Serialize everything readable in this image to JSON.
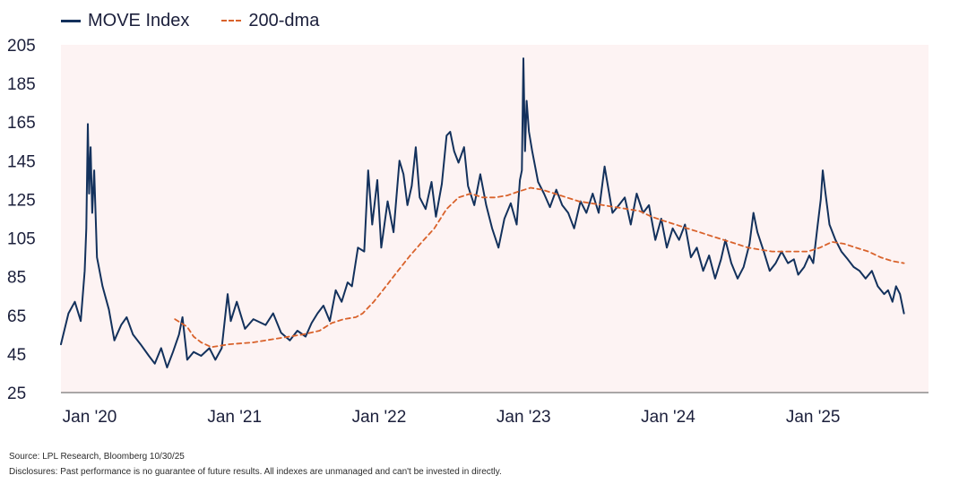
{
  "legend": {
    "series1": "MOVE Index",
    "series2": "200-dma"
  },
  "footer": {
    "source": "Source: LPL Research, Bloomberg 10/30/25",
    "disclosure": "Disclosures: Past performance is no guarantee of future results. All indexes are unmanaged and can't be invested in directly."
  },
  "colors": {
    "move": "#13315c",
    "dma": "#d9622b",
    "plot_bg": "#fdf3f3",
    "axis": "#555555"
  },
  "chart_data": {
    "type": "line",
    "title": "",
    "xlabel": "",
    "ylabel": "",
    "ylim": [
      25,
      205
    ],
    "yticks": [
      25,
      45,
      65,
      85,
      105,
      125,
      145,
      165,
      185,
      205
    ],
    "xlim": [
      "2020-01-01",
      "2025-12-31"
    ],
    "xticks": [
      {
        "date": "2020-01-01",
        "label": "Jan '20"
      },
      {
        "date": "2021-01-01",
        "label": "Jan '21"
      },
      {
        "date": "2022-01-01",
        "label": "Jan '22"
      },
      {
        "date": "2023-01-01",
        "label": "Jan '23"
      },
      {
        "date": "2024-01-01",
        "label": "Jan '24"
      },
      {
        "date": "2025-01-01",
        "label": "Jan '25"
      }
    ],
    "grid": false,
    "legend_position": "top-left",
    "series": [
      {
        "name": "MOVE Index",
        "style": "solid",
        "points": [
          [
            "2020-01-01",
            50
          ],
          [
            "2020-01-20",
            66
          ],
          [
            "2020-02-05",
            72
          ],
          [
            "2020-02-20",
            62
          ],
          [
            "2020-03-01",
            88
          ],
          [
            "2020-03-05",
            110
          ],
          [
            "2020-03-09",
            164
          ],
          [
            "2020-03-12",
            128
          ],
          [
            "2020-03-16",
            152
          ],
          [
            "2020-03-20",
            118
          ],
          [
            "2020-03-25",
            140
          ],
          [
            "2020-04-01",
            95
          ],
          [
            "2020-04-15",
            80
          ],
          [
            "2020-05-01",
            68
          ],
          [
            "2020-05-15",
            52
          ],
          [
            "2020-06-01",
            60
          ],
          [
            "2020-06-15",
            64
          ],
          [
            "2020-07-01",
            55
          ],
          [
            "2020-07-20",
            50
          ],
          [
            "2020-08-10",
            44
          ],
          [
            "2020-08-25",
            40
          ],
          [
            "2020-09-10",
            48
          ],
          [
            "2020-09-25",
            38
          ],
          [
            "2020-10-10",
            46
          ],
          [
            "2020-10-25",
            55
          ],
          [
            "2020-11-03",
            64
          ],
          [
            "2020-11-15",
            42
          ],
          [
            "2020-12-01",
            46
          ],
          [
            "2020-12-20",
            44
          ],
          [
            "2021-01-10",
            48
          ],
          [
            "2021-01-25",
            42
          ],
          [
            "2021-02-10",
            48
          ],
          [
            "2021-02-25",
            76
          ],
          [
            "2021-03-05",
            62
          ],
          [
            "2021-03-20",
            72
          ],
          [
            "2021-04-10",
            58
          ],
          [
            "2021-05-01",
            63
          ],
          [
            "2021-06-01",
            60
          ],
          [
            "2021-06-20",
            66
          ],
          [
            "2021-07-10",
            56
          ],
          [
            "2021-08-01",
            52
          ],
          [
            "2021-08-20",
            57
          ],
          [
            "2021-09-10",
            54
          ],
          [
            "2021-09-25",
            61
          ],
          [
            "2021-10-10",
            66
          ],
          [
            "2021-10-25",
            70
          ],
          [
            "2021-11-10",
            62
          ],
          [
            "2021-11-25",
            78
          ],
          [
            "2021-12-10",
            72
          ],
          [
            "2021-12-25",
            82
          ],
          [
            "2022-01-05",
            80
          ],
          [
            "2022-01-20",
            100
          ],
          [
            "2022-02-05",
            98
          ],
          [
            "2022-02-15",
            140
          ],
          [
            "2022-02-25",
            112
          ],
          [
            "2022-03-10",
            135
          ],
          [
            "2022-03-20",
            100
          ],
          [
            "2022-04-05",
            124
          ],
          [
            "2022-04-20",
            108
          ],
          [
            "2022-05-05",
            145
          ],
          [
            "2022-05-15",
            138
          ],
          [
            "2022-05-25",
            122
          ],
          [
            "2022-06-05",
            132
          ],
          [
            "2022-06-15",
            152
          ],
          [
            "2022-06-25",
            126
          ],
          [
            "2022-07-10",
            120
          ],
          [
            "2022-07-25",
            134
          ],
          [
            "2022-08-05",
            116
          ],
          [
            "2022-08-20",
            133
          ],
          [
            "2022-09-01",
            158
          ],
          [
            "2022-09-10",
            160
          ],
          [
            "2022-09-20",
            150
          ],
          [
            "2022-10-01",
            144
          ],
          [
            "2022-10-15",
            152
          ],
          [
            "2022-10-25",
            132
          ],
          [
            "2022-11-10",
            122
          ],
          [
            "2022-11-25",
            138
          ],
          [
            "2022-12-10",
            122
          ],
          [
            "2022-12-25",
            110
          ],
          [
            "2023-01-10",
            100
          ],
          [
            "2023-01-25",
            115
          ],
          [
            "2023-02-10",
            123
          ],
          [
            "2023-02-25",
            112
          ],
          [
            "2023-03-05",
            135
          ],
          [
            "2023-03-10",
            140
          ],
          [
            "2023-03-14",
            198
          ],
          [
            "2023-03-18",
            150
          ],
          [
            "2023-03-22",
            176
          ],
          [
            "2023-03-28",
            160
          ],
          [
            "2023-04-05",
            150
          ],
          [
            "2023-04-20",
            134
          ],
          [
            "2023-05-05",
            128
          ],
          [
            "2023-05-20",
            121
          ],
          [
            "2023-06-05",
            130
          ],
          [
            "2023-06-20",
            122
          ],
          [
            "2023-07-05",
            118
          ],
          [
            "2023-07-20",
            110
          ],
          [
            "2023-08-05",
            124
          ],
          [
            "2023-08-20",
            118
          ],
          [
            "2023-09-05",
            128
          ],
          [
            "2023-09-20",
            118
          ],
          [
            "2023-10-05",
            142
          ],
          [
            "2023-10-15",
            130
          ],
          [
            "2023-10-25",
            118
          ],
          [
            "2023-11-10",
            122
          ],
          [
            "2023-11-25",
            126
          ],
          [
            "2023-12-10",
            112
          ],
          [
            "2023-12-25",
            128
          ],
          [
            "2024-01-10",
            118
          ],
          [
            "2024-01-25",
            122
          ],
          [
            "2024-02-10",
            104
          ],
          [
            "2024-02-25",
            115
          ],
          [
            "2024-03-10",
            100
          ],
          [
            "2024-03-25",
            110
          ],
          [
            "2024-04-10",
            104
          ],
          [
            "2024-04-25",
            112
          ],
          [
            "2024-05-10",
            95
          ],
          [
            "2024-05-25",
            100
          ],
          [
            "2024-06-10",
            88
          ],
          [
            "2024-06-25",
            96
          ],
          [
            "2024-07-10",
            84
          ],
          [
            "2024-07-25",
            94
          ],
          [
            "2024-08-05",
            104
          ],
          [
            "2024-08-20",
            92
          ],
          [
            "2024-09-05",
            84
          ],
          [
            "2024-09-20",
            90
          ],
          [
            "2024-10-05",
            102
          ],
          [
            "2024-10-15",
            118
          ],
          [
            "2024-10-25",
            108
          ],
          [
            "2024-11-10",
            98
          ],
          [
            "2024-11-25",
            88
          ],
          [
            "2024-12-10",
            92
          ],
          [
            "2024-12-25",
            98
          ],
          [
            "2025-01-10",
            92
          ],
          [
            "2025-01-25",
            94
          ],
          [
            "2025-02-05",
            86
          ],
          [
            "2025-02-20",
            90
          ],
          [
            "2025-03-05",
            96
          ],
          [
            "2025-03-15",
            92
          ],
          [
            "2025-03-25",
            110
          ],
          [
            "2025-04-03",
            125
          ],
          [
            "2025-04-08",
            140
          ],
          [
            "2025-04-15",
            128
          ],
          [
            "2025-04-25",
            112
          ],
          [
            "2025-05-10",
            104
          ],
          [
            "2025-05-25",
            98
          ],
          [
            "2025-06-10",
            94
          ],
          [
            "2025-06-25",
            90
          ],
          [
            "2025-07-10",
            88
          ],
          [
            "2025-07-25",
            84
          ],
          [
            "2025-08-10",
            88
          ],
          [
            "2025-08-25",
            80
          ],
          [
            "2025-09-10",
            76
          ],
          [
            "2025-09-20",
            78
          ],
          [
            "2025-10-01",
            72
          ],
          [
            "2025-10-10",
            80
          ],
          [
            "2025-10-20",
            76
          ],
          [
            "2025-10-30",
            66
          ]
        ]
      },
      {
        "name": "200-dma",
        "style": "dashed",
        "points": [
          [
            "2020-10-15",
            63
          ],
          [
            "2020-11-15",
            59
          ],
          [
            "2020-12-01",
            54
          ],
          [
            "2020-12-20",
            51
          ],
          [
            "2021-01-15",
            48.5
          ],
          [
            "2021-03-01",
            50
          ],
          [
            "2021-05-01",
            51
          ],
          [
            "2021-07-01",
            53
          ],
          [
            "2021-09-01",
            55
          ],
          [
            "2021-10-15",
            57
          ],
          [
            "2021-11-15",
            61
          ],
          [
            "2021-12-15",
            63
          ],
          [
            "2022-01-15",
            64
          ],
          [
            "2022-02-01",
            66
          ],
          [
            "2022-03-01",
            72
          ],
          [
            "2022-04-01",
            80
          ],
          [
            "2022-05-01",
            88
          ],
          [
            "2022-06-01",
            96
          ],
          [
            "2022-07-01",
            103
          ],
          [
            "2022-08-01",
            110
          ],
          [
            "2022-09-01",
            120
          ],
          [
            "2022-10-01",
            126
          ],
          [
            "2022-11-01",
            128
          ],
          [
            "2022-12-01",
            126
          ],
          [
            "2023-01-01",
            126
          ],
          [
            "2023-02-01",
            127
          ],
          [
            "2023-03-01",
            129
          ],
          [
            "2023-04-01",
            131
          ],
          [
            "2023-05-01",
            130
          ],
          [
            "2023-06-01",
            128
          ],
          [
            "2023-07-01",
            126
          ],
          [
            "2023-08-01",
            124
          ],
          [
            "2023-09-01",
            123
          ],
          [
            "2023-10-01",
            122
          ],
          [
            "2023-11-01",
            121
          ],
          [
            "2023-12-01",
            120
          ],
          [
            "2024-01-01",
            119
          ],
          [
            "2024-02-01",
            116
          ],
          [
            "2024-03-01",
            114
          ],
          [
            "2024-04-01",
            112
          ],
          [
            "2024-05-01",
            110
          ],
          [
            "2024-06-01",
            108
          ],
          [
            "2024-07-01",
            106
          ],
          [
            "2024-08-01",
            104
          ],
          [
            "2024-09-01",
            102
          ],
          [
            "2024-10-01",
            100
          ],
          [
            "2024-11-01",
            99
          ],
          [
            "2024-12-01",
            98
          ],
          [
            "2025-01-01",
            98
          ],
          [
            "2025-02-01",
            98
          ],
          [
            "2025-03-01",
            98
          ],
          [
            "2025-04-01",
            100
          ],
          [
            "2025-05-01",
            103
          ],
          [
            "2025-06-01",
            102
          ],
          [
            "2025-07-01",
            100
          ],
          [
            "2025-08-01",
            98
          ],
          [
            "2025-09-01",
            95
          ],
          [
            "2025-10-01",
            93
          ],
          [
            "2025-10-30",
            92
          ]
        ]
      }
    ]
  }
}
